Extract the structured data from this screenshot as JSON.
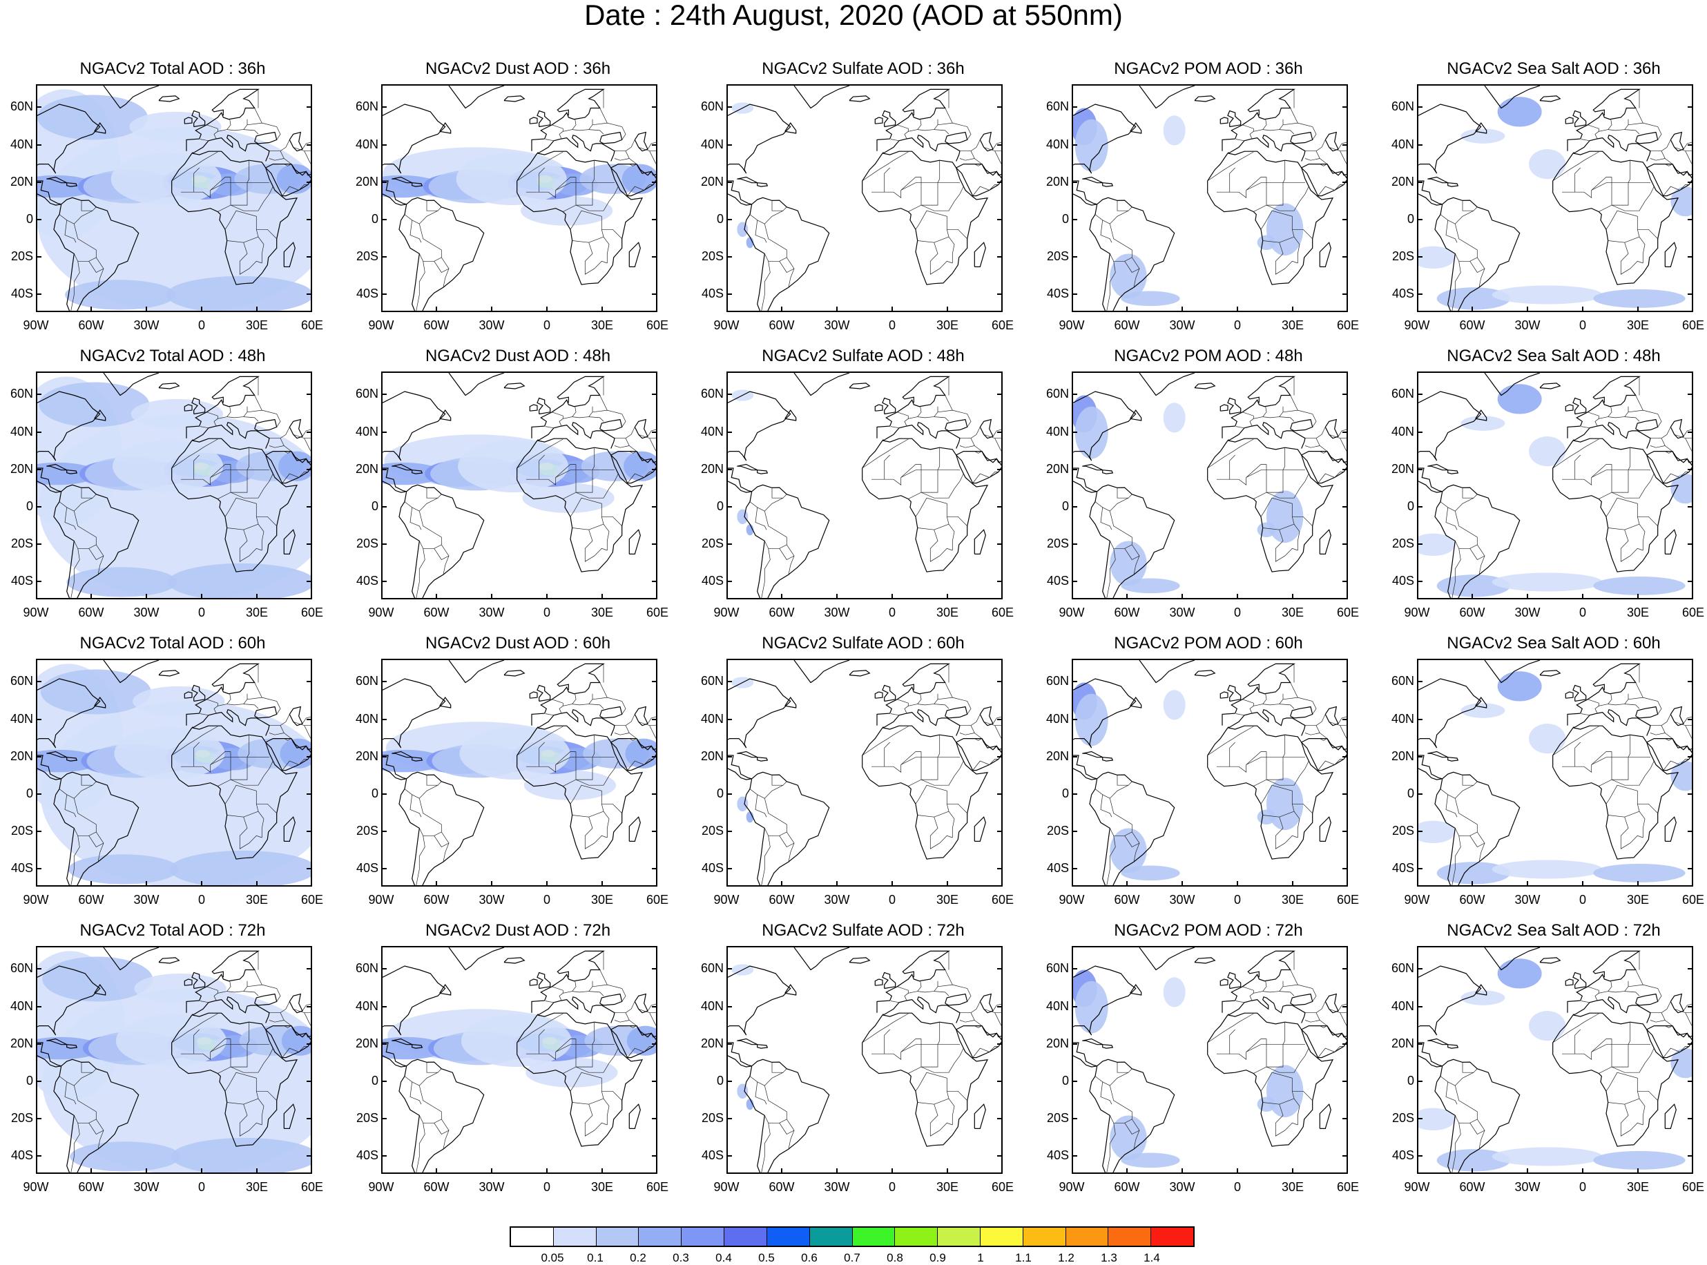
{
  "title": "Date : 24th August, 2020 (AOD at 550nm)",
  "lat_labels": [
    "60N",
    "40N",
    "20N",
    "0",
    "20S",
    "40S"
  ],
  "lon_labels": [
    "90W",
    "60W",
    "30W",
    "0",
    "30E",
    "60E"
  ],
  "panel_titles": [
    [
      "NGACv2 Total AOD : 36h",
      "NGACv2 Dust AOD : 36h",
      "NGACv2 Sulfate AOD : 36h",
      "NGACv2 POM AOD : 36h",
      "NGACv2 Sea Salt AOD : 36h"
    ],
    [
      "NGACv2 Total AOD : 48h",
      "NGACv2 Dust AOD : 48h",
      "NGACv2 Sulfate AOD : 48h",
      "NGACv2 POM AOD : 48h",
      "NGACv2 Sea Salt AOD : 48h"
    ],
    [
      "NGACv2 Total AOD : 60h",
      "NGACv2 Dust AOD : 60h",
      "NGACv2 Sulfate AOD : 60h",
      "NGACv2 POM AOD : 60h",
      "NGACv2 Sea Salt AOD : 60h"
    ],
    [
      "NGACv2 Total AOD : 72h",
      "NGACv2 Dust AOD : 72h",
      "NGACv2 Sulfate AOD : 72h",
      "NGACv2 POM AOD : 72h",
      "NGACv2 Sea Salt  AOD : 72h"
    ]
  ],
  "colorbar": {
    "labels": [
      "0.05",
      "0.1",
      "0.2",
      "0.3",
      "0.4",
      "0.5",
      "0.6",
      "0.7",
      "0.8",
      "0.9",
      "1",
      "1.1",
      "1.2",
      "1.3",
      "1.4"
    ],
    "colors": [
      "#ffffff",
      "#d4e0fb",
      "#b4c8f6",
      "#93aef4",
      "#7e96f4",
      "#5d6ef0",
      "#0f5ef5",
      "#0b9b9b",
      "#3df428",
      "#8ef217",
      "#c8f247",
      "#fcf93b",
      "#fcbc14",
      "#fc9714",
      "#fb6c12",
      "#fb1d12"
    ]
  }
}
